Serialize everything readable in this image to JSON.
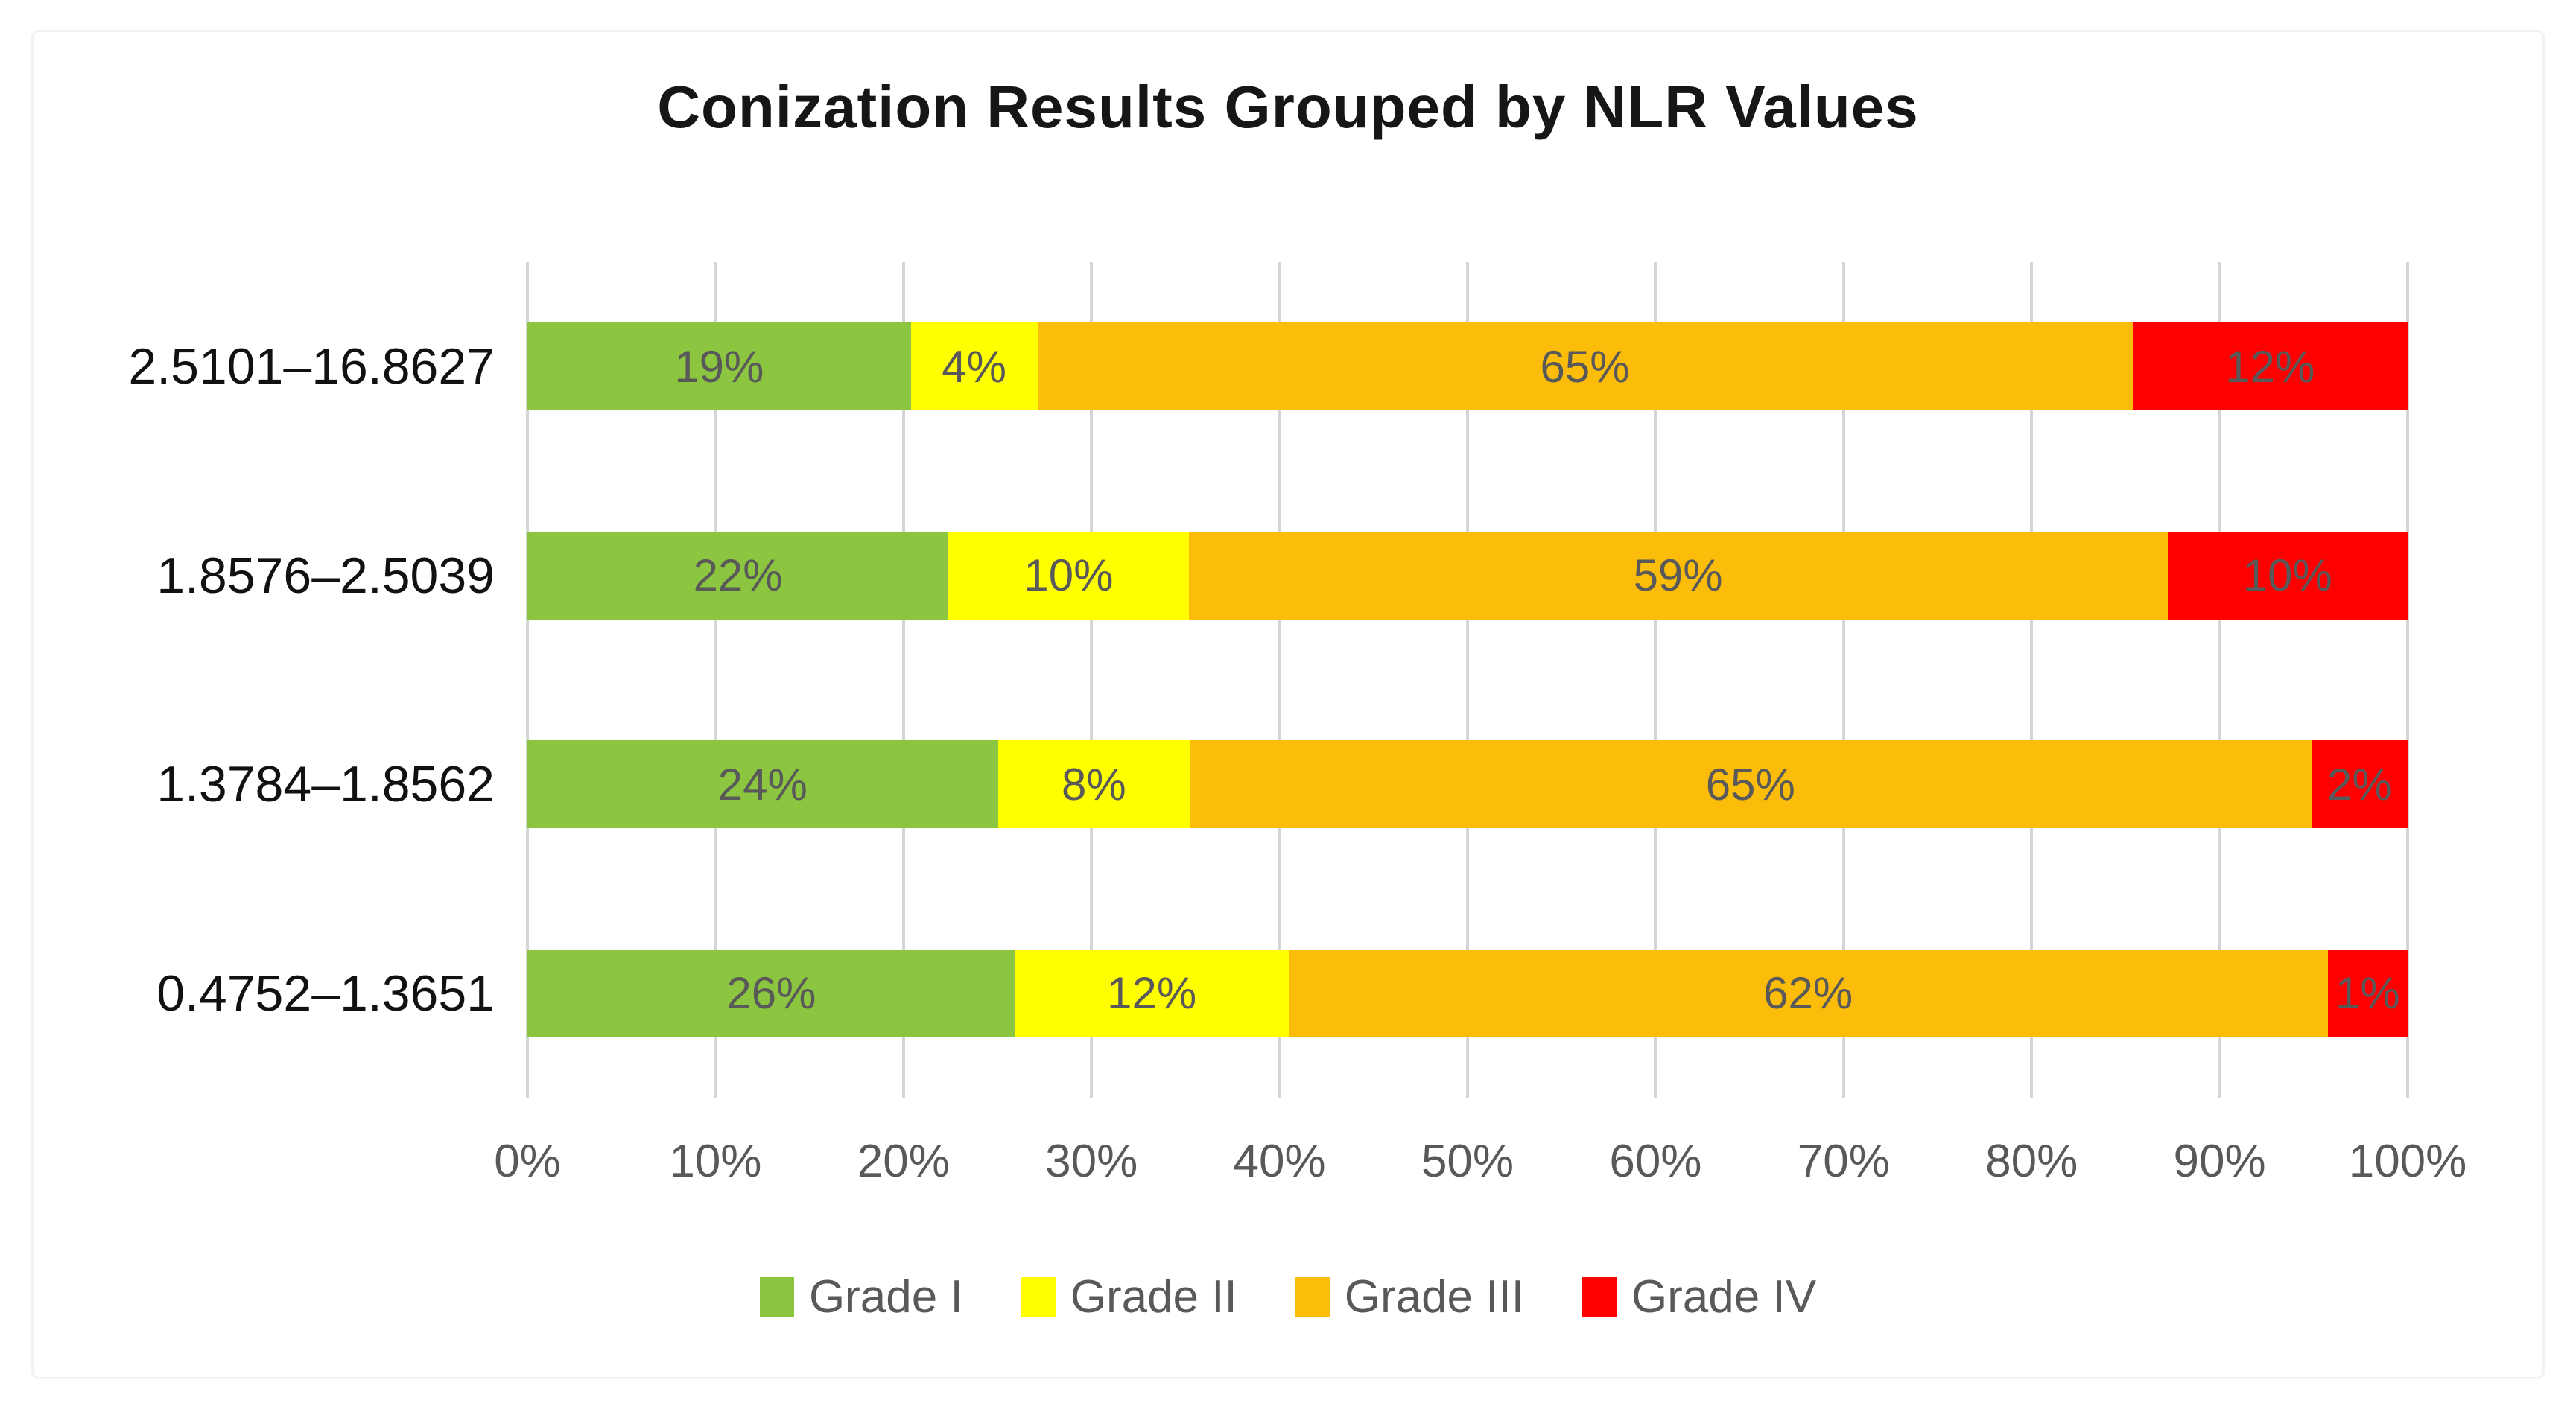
{
  "chart_data": {
    "type": "bar",
    "orientation": "horizontal",
    "stacked_100_percent": true,
    "title": "Conization Results Grouped by NLR Values",
    "categories": [
      "2.5101–16.8627",
      "1.8576–2.5039",
      "1.3784–1.8562",
      "0.4752–1.3651"
    ],
    "series": [
      {
        "name": "Grade I",
        "color": "#8cc540",
        "values": [
          19,
          22,
          24,
          26
        ],
        "data_labels": [
          "19%",
          "22%",
          "24%",
          "26%"
        ]
      },
      {
        "name": "Grade II",
        "color": "#ffff00",
        "values": [
          4,
          10,
          8,
          12
        ],
        "data_labels": [
          "4%",
          "10%",
          "8%",
          "12%"
        ]
      },
      {
        "name": "Grade III",
        "color": "#fbbd0a",
        "values": [
          65,
          59,
          65,
          62
        ],
        "data_labels": [
          "65%",
          "59%",
          "65%",
          "62%"
        ]
      },
      {
        "name": "Grade IV",
        "color": "#fe0000",
        "values": [
          12,
          10,
          2,
          1
        ],
        "data_labels": [
          "12%",
          "10%",
          "2%",
          "1%"
        ]
      }
    ],
    "xlabel": "",
    "ylabel": "",
    "xlim": [
      0,
      100
    ],
    "x_ticks": [
      "0%",
      "10%",
      "20%",
      "30%",
      "40%",
      "50%",
      "60%",
      "70%",
      "80%",
      "90%",
      "100%"
    ],
    "grid": "vertical",
    "gridline_color": "#d6d6d6",
    "data_label_color": "#595959",
    "legend_position": "bottom"
  }
}
